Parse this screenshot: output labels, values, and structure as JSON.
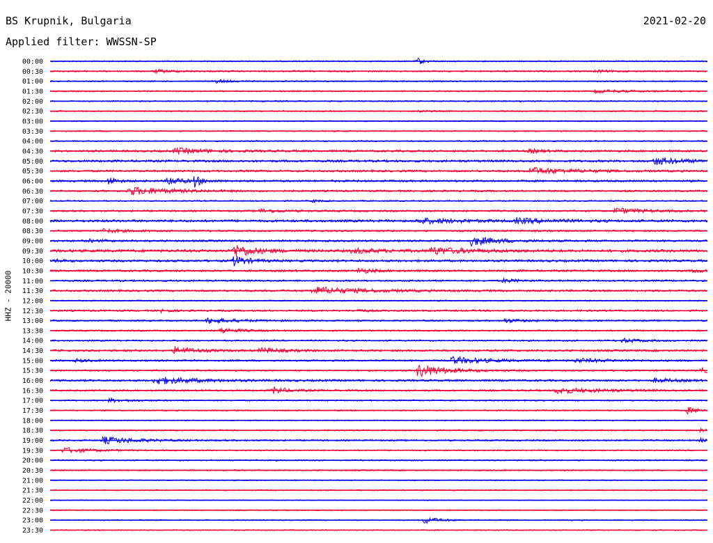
{
  "header": {
    "station": "BS Krupnik, Bulgaria",
    "date": "2021-02-20",
    "filter": "Applied filter: WWSSN-SP"
  },
  "chart_data": {
    "type": "line",
    "title": "BS Krupnik, Bulgaria",
    "ylabel": "HHZ - 20000",
    "colors": {
      "even": "#0000ee",
      "odd": "#ee0033"
    },
    "rows": [
      {
        "label": "00:00",
        "noise": 0.3,
        "events": [
          {
            "pos": 0.56,
            "amp": 1.4,
            "width": 0.01
          }
        ]
      },
      {
        "label": "00:30",
        "noise": 0.35,
        "events": [
          {
            "pos": 0.16,
            "amp": 0.6,
            "width": 0.03
          },
          {
            "pos": 0.83,
            "amp": 0.5,
            "width": 0.02
          }
        ]
      },
      {
        "label": "01:00",
        "noise": 0.3,
        "events": [
          {
            "pos": 0.25,
            "amp": 0.8,
            "width": 0.02
          }
        ]
      },
      {
        "label": "01:30",
        "noise": 0.3,
        "events": [
          {
            "pos": 0.83,
            "amp": 0.6,
            "width": 0.05
          }
        ]
      },
      {
        "label": "02:00",
        "noise": 0.3,
        "events": []
      },
      {
        "label": "02:30",
        "noise": 0.3,
        "events": [
          {
            "pos": 0.56,
            "amp": 0.6,
            "width": 0.01
          }
        ]
      },
      {
        "label": "03:00",
        "noise": 0.25,
        "events": []
      },
      {
        "label": "03:30",
        "noise": 0.3,
        "events": []
      },
      {
        "label": "04:00",
        "noise": 0.3,
        "events": []
      },
      {
        "label": "04:30",
        "noise": 0.45,
        "events": [
          {
            "pos": 0.19,
            "amp": 1.2,
            "width": 0.05
          },
          {
            "pos": 0.73,
            "amp": 0.8,
            "width": 0.02
          }
        ]
      },
      {
        "label": "05:00",
        "noise": 0.5,
        "events": [
          {
            "pos": 0.92,
            "amp": 1.6,
            "width": 0.04
          }
        ]
      },
      {
        "label": "05:30",
        "noise": 0.45,
        "events": [
          {
            "pos": 0.73,
            "amp": 1.5,
            "width": 0.06
          }
        ]
      },
      {
        "label": "06:00",
        "noise": 0.45,
        "events": [
          {
            "pos": 0.09,
            "amp": 2.2,
            "width": 0.01
          },
          {
            "pos": 0.18,
            "amp": 2.0,
            "width": 0.02
          },
          {
            "pos": 0.22,
            "amp": 2.4,
            "width": 0.01
          }
        ]
      },
      {
        "label": "06:30",
        "noise": 0.4,
        "events": [
          {
            "pos": 0.12,
            "amp": 1.8,
            "width": 0.06
          }
        ]
      },
      {
        "label": "07:00",
        "noise": 0.3,
        "events": [
          {
            "pos": 0.4,
            "amp": 0.6,
            "width": 0.01
          }
        ]
      },
      {
        "label": "07:30",
        "noise": 0.4,
        "events": [
          {
            "pos": 0.32,
            "amp": 0.8,
            "width": 0.03
          },
          {
            "pos": 0.86,
            "amp": 1.2,
            "width": 0.04
          }
        ]
      },
      {
        "label": "08:00",
        "noise": 0.55,
        "events": [
          {
            "pos": 0.56,
            "amp": 1.1,
            "width": 0.06
          },
          {
            "pos": 0.71,
            "amp": 1.0,
            "width": 0.05
          }
        ]
      },
      {
        "label": "08:30",
        "noise": 0.4,
        "events": [
          {
            "pos": 0.08,
            "amp": 0.8,
            "width": 0.03
          }
        ]
      },
      {
        "label": "09:00",
        "noise": 0.45,
        "events": [
          {
            "pos": 0.64,
            "amp": 2.0,
            "width": 0.04
          },
          {
            "pos": 0.06,
            "amp": 0.5,
            "width": 0.02
          }
        ]
      },
      {
        "label": "09:30",
        "noise": 0.6,
        "events": [
          {
            "pos": 0.28,
            "amp": 2.8,
            "width": 0.03
          },
          {
            "pos": 0.58,
            "amp": 1.5,
            "width": 0.05
          },
          {
            "pos": 0.46,
            "amp": 1.0,
            "width": 0.04
          }
        ]
      },
      {
        "label": "10:00",
        "noise": 0.5,
        "events": [
          {
            "pos": 0.28,
            "amp": 2.2,
            "width": 0.02
          },
          {
            "pos": 0.01,
            "amp": 0.6,
            "width": 0.01
          }
        ]
      },
      {
        "label": "10:30",
        "noise": 0.45,
        "events": [
          {
            "pos": 0.47,
            "amp": 1.2,
            "width": 0.02
          },
          {
            "pos": 0.98,
            "amp": 1.0,
            "width": 0.01
          }
        ]
      },
      {
        "label": "11:00",
        "noise": 0.4,
        "events": [
          {
            "pos": 0.69,
            "amp": 0.8,
            "width": 0.02
          }
        ]
      },
      {
        "label": "11:30",
        "noise": 0.45,
        "events": [
          {
            "pos": 0.4,
            "amp": 1.6,
            "width": 0.07
          }
        ]
      },
      {
        "label": "12:00",
        "noise": 0.3,
        "events": []
      },
      {
        "label": "12:30",
        "noise": 0.4,
        "events": [
          {
            "pos": 0.17,
            "amp": 0.8,
            "width": 0.01
          },
          {
            "pos": 0.47,
            "amp": 0.7,
            "width": 0.01
          }
        ]
      },
      {
        "label": "13:00",
        "noise": 0.35,
        "events": [
          {
            "pos": 0.24,
            "amp": 1.2,
            "width": 0.04
          },
          {
            "pos": 0.69,
            "amp": 0.8,
            "width": 0.03
          }
        ]
      },
      {
        "label": "13:30",
        "noise": 0.35,
        "events": [
          {
            "pos": 0.26,
            "amp": 1.1,
            "width": 0.03
          }
        ]
      },
      {
        "label": "14:00",
        "noise": 0.35,
        "events": [
          {
            "pos": 0.87,
            "amp": 0.9,
            "width": 0.03
          }
        ]
      },
      {
        "label": "14:30",
        "noise": 0.45,
        "events": [
          {
            "pos": 0.19,
            "amp": 1.6,
            "width": 0.03
          },
          {
            "pos": 0.32,
            "amp": 1.2,
            "width": 0.03
          }
        ]
      },
      {
        "label": "15:00",
        "noise": 0.4,
        "events": [
          {
            "pos": 0.61,
            "amp": 1.6,
            "width": 0.05
          },
          {
            "pos": 0.8,
            "amp": 0.8,
            "width": 0.05
          },
          {
            "pos": 0.04,
            "amp": 0.6,
            "width": 0.02
          }
        ]
      },
      {
        "label": "15:30",
        "noise": 0.35,
        "events": [
          {
            "pos": 0.56,
            "amp": 3.0,
            "width": 0.04
          },
          {
            "pos": 0.99,
            "amp": 1.2,
            "width": 0.02
          }
        ]
      },
      {
        "label": "16:00",
        "noise": 0.45,
        "events": [
          {
            "pos": 0.16,
            "amp": 1.6,
            "width": 0.06
          },
          {
            "pos": 0.92,
            "amp": 0.8,
            "width": 0.03
          }
        ]
      },
      {
        "label": "16:30",
        "noise": 0.4,
        "events": [
          {
            "pos": 0.34,
            "amp": 1.6,
            "width": 0.02
          },
          {
            "pos": 0.77,
            "amp": 1.2,
            "width": 0.06
          }
        ]
      },
      {
        "label": "17:00",
        "noise": 0.3,
        "events": [
          {
            "pos": 0.09,
            "amp": 0.8,
            "width": 0.03
          }
        ]
      },
      {
        "label": "17:30",
        "noise": 0.3,
        "events": [
          {
            "pos": 0.97,
            "amp": 1.4,
            "width": 0.02
          }
        ]
      },
      {
        "label": "18:00",
        "noise": 0.25,
        "events": []
      },
      {
        "label": "18:30",
        "noise": 0.3,
        "events": [
          {
            "pos": 0.99,
            "amp": 0.6,
            "width": 0.01
          }
        ]
      },
      {
        "label": "19:00",
        "noise": 0.35,
        "events": [
          {
            "pos": 0.08,
            "amp": 1.6,
            "width": 0.05
          },
          {
            "pos": 0.99,
            "amp": 0.8,
            "width": 0.01
          }
        ]
      },
      {
        "label": "19:30",
        "noise": 0.3,
        "events": [
          {
            "pos": 0.02,
            "amp": 1.2,
            "width": 0.04
          }
        ]
      },
      {
        "label": "20:00",
        "noise": 0.3,
        "events": []
      },
      {
        "label": "20:30",
        "noise": 0.3,
        "events": []
      },
      {
        "label": "21:00",
        "noise": 0.25,
        "events": []
      },
      {
        "label": "21:30",
        "noise": 0.25,
        "events": []
      },
      {
        "label": "22:00",
        "noise": 0.2,
        "events": []
      },
      {
        "label": "22:30",
        "noise": 0.25,
        "events": []
      },
      {
        "label": "23:00",
        "noise": 0.25,
        "events": [
          {
            "pos": 0.57,
            "amp": 1.6,
            "width": 0.02
          }
        ]
      },
      {
        "label": "23:30",
        "noise": 0.25,
        "events": []
      }
    ]
  }
}
